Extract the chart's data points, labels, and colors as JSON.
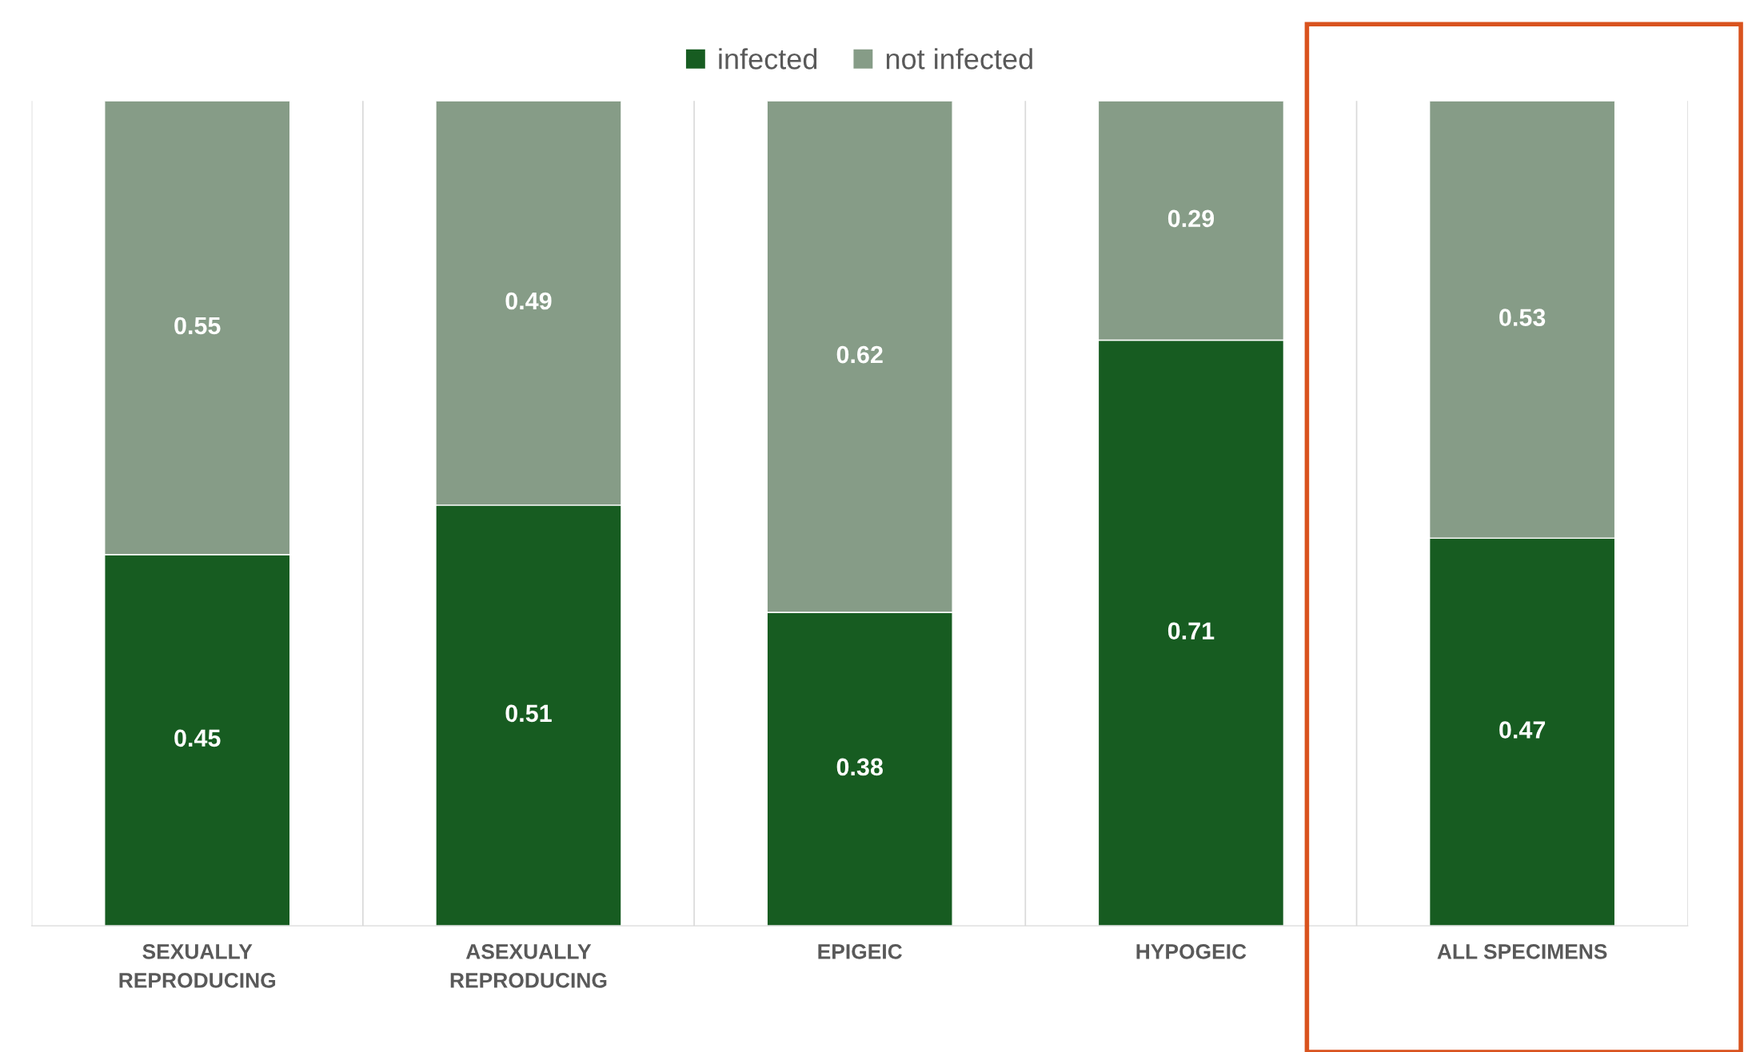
{
  "chart_data": {
    "type": "bar",
    "stacked": true,
    "categories": [
      "SEXUALLY\nREPRODUCING",
      "ASEXUALLY\nREPRODUCING",
      "EPIGEIC",
      "HYPOGEIC",
      "ALL SPECIMENS"
    ],
    "series": [
      {
        "name": "infected",
        "color": "#175c21",
        "values": [
          0.45,
          0.51,
          0.38,
          0.71,
          0.47
        ]
      },
      {
        "name": "not infected",
        "color": "#869c87",
        "values": [
          0.55,
          0.49,
          0.62,
          0.29,
          0.53
        ]
      }
    ],
    "ylim": [
      0,
      1
    ],
    "tick_labels": "x",
    "data_labels": true,
    "legend": "top",
    "grid": "x"
  }
}
